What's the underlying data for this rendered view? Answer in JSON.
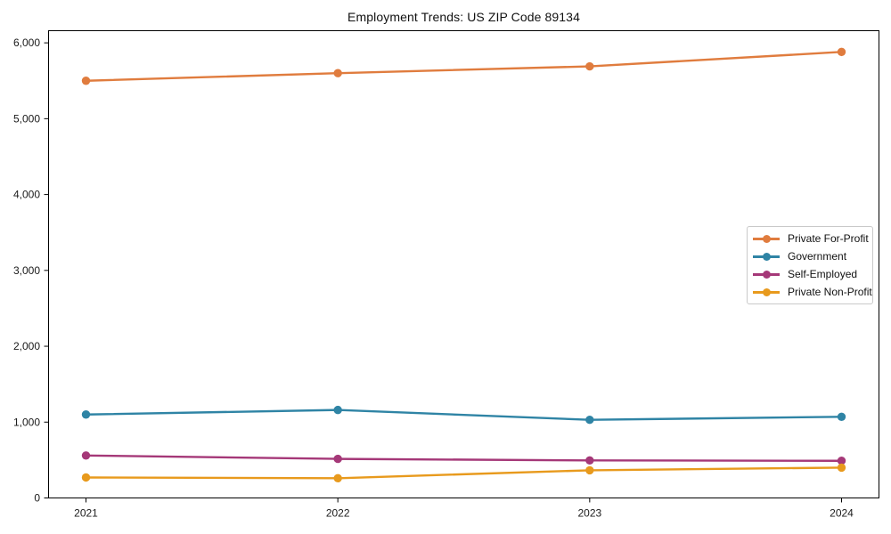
{
  "chart_data": {
    "type": "line",
    "title": "Employment Trends: US ZIP Code 89134",
    "categories": [
      "2021",
      "2022",
      "2023",
      "2024"
    ],
    "series": [
      {
        "name": "Private For-Profit",
        "color": "#E07C3E",
        "values": [
          5500,
          5600,
          5690,
          5880
        ]
      },
      {
        "name": "Government",
        "color": "#2F84A5",
        "values": [
          1100,
          1160,
          1030,
          1070
        ]
      },
      {
        "name": "Self-Employed",
        "color": "#A53878",
        "values": [
          560,
          515,
          495,
          490
        ]
      },
      {
        "name": "Private Non-Profit",
        "color": "#E89A1D",
        "values": [
          270,
          260,
          365,
          400
        ]
      }
    ],
    "xlabel": "",
    "ylabel": "",
    "ylim": [
      0,
      6160
    ],
    "y_tick_values": [
      0,
      1000,
      2000,
      3000,
      4000,
      5000,
      6000
    ],
    "y_tick_labels": [
      "0",
      "1,000",
      "2,000",
      "3,000",
      "4,000",
      "5,000",
      "6,000"
    ],
    "legend_position": "center-right",
    "grid": false,
    "marker": "circle",
    "axis_color": "#000000",
    "background_color": "#ffffff"
  }
}
